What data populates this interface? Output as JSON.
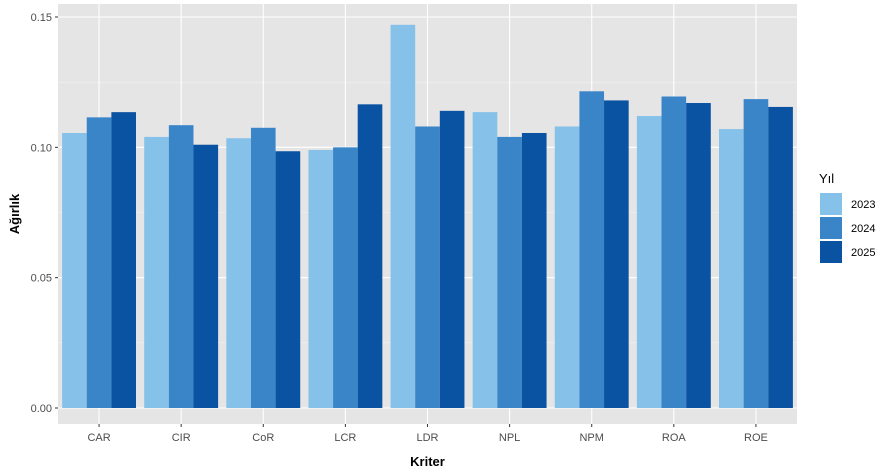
{
  "chart_data": {
    "type": "bar",
    "xlabel": "Kriter",
    "ylabel": "Ağırlık",
    "categories": [
      "CAR",
      "CIR",
      "CoR",
      "LCR",
      "LDR",
      "NPL",
      "NPM",
      "ROA",
      "ROE"
    ],
    "ylim": [
      0,
      0.15
    ],
    "yticks": [
      "0.00",
      "0.05",
      "0.10",
      "0.15"
    ],
    "legend_title": "Yıl",
    "legend_position": "right",
    "grid": true,
    "panel_background": "#e5e5e5",
    "series": [
      {
        "name": "2023",
        "color": "#85c1e9",
        "values": [
          0.1055,
          0.104,
          0.1035,
          0.099,
          0.147,
          0.1135,
          0.108,
          0.112,
          0.107
        ]
      },
      {
        "name": "2024",
        "color": "#3a85c8",
        "values": [
          0.1115,
          0.1085,
          0.1075,
          0.1,
          0.108,
          0.104,
          0.1215,
          0.1195,
          0.1185
        ]
      },
      {
        "name": "2025",
        "color": "#0a52a2",
        "values": [
          0.1135,
          0.101,
          0.0985,
          0.1165,
          0.114,
          0.1055,
          0.118,
          0.117,
          0.1155
        ]
      }
    ]
  }
}
